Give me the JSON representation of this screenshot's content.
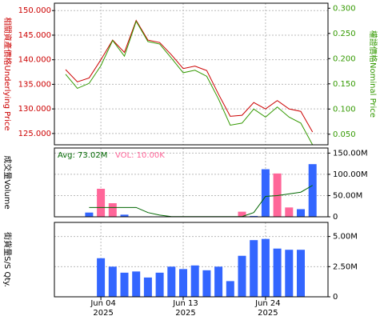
{
  "chart_data": [
    {
      "type": "line",
      "ylabel": "相關資產價格Underlying Price",
      "y2label": "權證價格Nominal Price",
      "ylim": [
        122.7,
        151.5
      ],
      "yticks": [
        {
          "value": 125,
          "label": "125.000"
        },
        {
          "value": 130,
          "label": "130.000"
        },
        {
          "value": 135,
          "label": "135.000"
        },
        {
          "value": 140,
          "label": "140.000"
        },
        {
          "value": 145,
          "label": "145.000"
        },
        {
          "value": 150,
          "label": "150.000"
        }
      ],
      "y2lim": [
        0.029,
        0.31
      ],
      "y2ticks": [
        {
          "value": 0.05,
          "label": "0.050"
        },
        {
          "value": 0.1,
          "label": "0.100"
        },
        {
          "value": 0.15,
          "label": "0.150"
        },
        {
          "value": 0.2,
          "label": "0.200"
        },
        {
          "value": 0.25,
          "label": "0.250"
        },
        {
          "value": 0.3,
          "label": "0.300"
        }
      ],
      "grid": true,
      "series": [
        {
          "name": null,
          "color": "#cc0000",
          "values": [
            138,
            135.5,
            136.3,
            140,
            144,
            141.5,
            148,
            144,
            143.5,
            141,
            138.2,
            138.7,
            137.8,
            133,
            128.5,
            128.7,
            131.3,
            130,
            131.7,
            130,
            129.5,
            125.3
          ]
        },
        {
          "name": null,
          "color": "#339900",
          "axis": "y2",
          "values": [
            0.169,
            0.141,
            0.151,
            0.186,
            0.236,
            0.205,
            0.274,
            0.234,
            0.229,
            0.201,
            0.172,
            0.177,
            0.165,
            0.12,
            0.068,
            0.072,
            0.1,
            0.084,
            0.104,
            0.084,
            0.072,
            0.029
          ]
        }
      ]
    },
    {
      "type": "bar",
      "ylabel": "成交量Volume",
      "avg_label": "Avg: 73.02M",
      "vol_label": "VOL: 10.00K",
      "ylim": [
        0,
        162000000
      ],
      "yticks": [
        0,
        {
          "value": 50000000,
          "label": "50.00M"
        },
        {
          "value": 100000000,
          "label": "100.00M"
        },
        {
          "value": 150000000,
          "label": "150.00M"
        }
      ],
      "grid": true,
      "values": [
        null,
        null,
        10000000,
        66000000,
        32000000,
        5000000,
        null,
        1000000,
        1000000,
        null,
        null,
        null,
        null,
        null,
        null,
        12000000,
        2000000,
        112000000,
        102000000,
        22000000,
        18000000,
        124000000
      ],
      "bar_colors": [
        null,
        null,
        "#3366ff",
        "#ff6699",
        "#ff6699",
        "#3366ff",
        null,
        "#3366ff",
        "#3366ff",
        null,
        null,
        null,
        null,
        null,
        null,
        "#ff6699",
        "#3366ff",
        "#3366ff",
        "#ff6699",
        "#ff6699",
        "#3366ff",
        "#3366ff"
      ],
      "average": {
        "color": "#006600",
        "values": [
          null,
          null,
          22000000,
          22000000,
          22000000,
          22000000,
          22000000,
          10000000,
          4000000,
          500000,
          500000,
          500000,
          500000,
          500000,
          500000,
          500000,
          10000000,
          48000000,
          50000000,
          54000000,
          58000000,
          74000000
        ]
      }
    },
    {
      "type": "bar",
      "ylabel": "街貨量S/S Qty.",
      "ylim": [
        0,
        6170000
      ],
      "yticks": [
        0,
        {
          "value": 2500000,
          "label": "2.50M"
        },
        {
          "value": 5000000,
          "label": "5.00M"
        }
      ],
      "grid": true,
      "color": "#3366ff",
      "values": [
        null,
        null,
        null,
        3200000,
        2500000,
        2000000,
        2100000,
        1600000,
        2000000,
        2500000,
        2300000,
        2600000,
        2200000,
        2500000,
        1300000,
        3400000,
        4700000,
        4800000,
        4000000,
        3900000,
        3900000,
        null
      ],
      "categories": [
        null,
        null,
        null,
        "Jun 04",
        null,
        null,
        null,
        null,
        null,
        null,
        "Jun 13",
        null,
        null,
        null,
        null,
        null,
        null,
        "Jun 24",
        null,
        null,
        null,
        null
      ],
      "year": "2025"
    }
  ]
}
